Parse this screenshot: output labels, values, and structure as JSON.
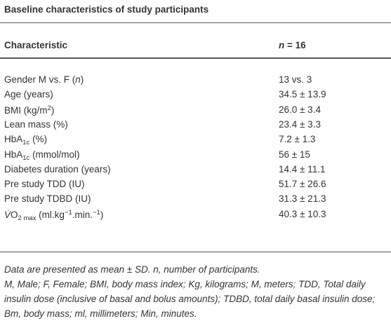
{
  "title": "Baseline characteristics of study participants",
  "header": {
    "label": [
      {
        "text": "Characteristic"
      }
    ],
    "value": [
      {
        "text": "n",
        "style": "italic"
      },
      {
        "text": " = 16"
      }
    ]
  },
  "rows": [
    {
      "label": [
        {
          "text": "Gender M vs. F ("
        },
        {
          "text": "n",
          "style": "italic"
        },
        {
          "text": ")"
        }
      ],
      "value": [
        {
          "text": "13 vs. 3"
        }
      ]
    },
    {
      "label": [
        {
          "text": "Age (years)"
        }
      ],
      "value": [
        {
          "text": "34.5 ± 13.9"
        }
      ]
    },
    {
      "label": [
        {
          "text": "BMI (kg/m"
        },
        {
          "text": "2",
          "style": "sup"
        },
        {
          "text": ")"
        }
      ],
      "value": [
        {
          "text": "26.0 ± 3.4"
        }
      ]
    },
    {
      "label": [
        {
          "text": "Lean mass (%)"
        }
      ],
      "value": [
        {
          "text": "23.4 ± 3.3"
        }
      ]
    },
    {
      "label": [
        {
          "text": "HbA"
        },
        {
          "text": "1c",
          "style": "sub"
        },
        {
          "text": " (%)"
        }
      ],
      "value": [
        {
          "text": "7.2 ± 1.3"
        }
      ]
    },
    {
      "label": [
        {
          "text": "HbA"
        },
        {
          "text": "1c",
          "style": "sub"
        },
        {
          "text": " (mmol/mol)"
        }
      ],
      "value": [
        {
          "text": "56 ± 15"
        }
      ]
    },
    {
      "label": [
        {
          "text": "Diabetes duration (years)"
        }
      ],
      "value": [
        {
          "text": "14.4 ± 11.1"
        }
      ]
    },
    {
      "label": [
        {
          "text": "Pre study TDD (IU)"
        }
      ],
      "value": [
        {
          "text": "51.7 ± 26.6"
        }
      ]
    },
    {
      "label": [
        {
          "text": "Pre study TDBD (IU)"
        }
      ],
      "value": [
        {
          "text": "31.3 ± 21.3"
        }
      ]
    },
    {
      "label": [
        {
          "text": "V̇",
          "style": "italic"
        },
        {
          "text": "O"
        },
        {
          "text": "2 max",
          "style": "sub"
        },
        {
          "text": " (ml.kg"
        },
        {
          "text": "−1",
          "style": "sup"
        },
        {
          "text": ".min."
        },
        {
          "text": "−1",
          "style": "sup"
        },
        {
          "text": ")"
        }
      ],
      "value": [
        {
          "text": "40.3 ± 10.3"
        }
      ]
    }
  ],
  "notes": [
    "Data are presented as mean ± SD. n, number of participants.",
    "M, Male; F, Female; BMI, body mass index; Kg, kilograms; M, meters; TDD, Total daily insulin dose (inclusive of basal and bolus amounts); TDBD, total daily basal insulin dose; Bm, body mass; ml, millimeters; Min, minutes."
  ]
}
